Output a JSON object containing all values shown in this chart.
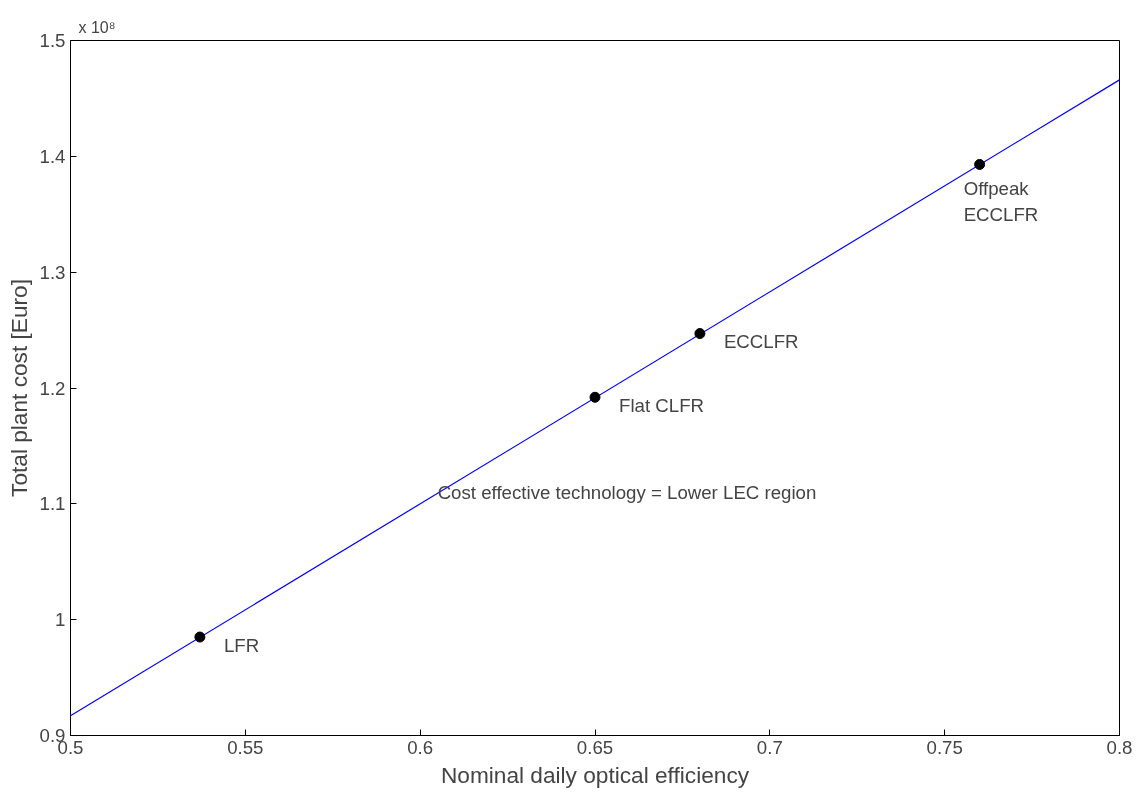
{
  "chart_data": {
    "type": "scatter",
    "xlabel": "Nominal daily optical efficiency",
    "ylabel": "Total plant cost [Euro]",
    "xlim": [
      0.5,
      0.8
    ],
    "xticks": [
      0.5,
      0.55,
      0.6,
      0.65,
      0.7,
      0.75,
      0.8
    ],
    "ylim": [
      0.9,
      1.5
    ],
    "yticks": [
      0.9,
      1,
      1.1,
      1.2,
      1.3,
      1.4,
      1.5
    ],
    "grid": false,
    "series": [
      {
        "type": "line",
        "color": "#0000ff",
        "x": [
          0.5,
          0.8
        ],
        "values": [
          0.917,
          1.466
        ],
        "marker": "none",
        "line_style": "solid"
      },
      {
        "color": "#000000",
        "x": [
          0.537,
          0.65,
          0.68,
          0.76
        ],
        "values": [
          0.985,
          1.192,
          1.247,
          1.393
        ],
        "marker": "circle"
      }
    ],
    "annotations": [
      {
        "text": "LFR",
        "x": 0.537,
        "y": 0.985
      },
      {
        "text": "Flat CLFR",
        "x": 0.65,
        "y": 1.192
      },
      {
        "text": "ECCLFR",
        "x": 0.68,
        "y": 1.247
      },
      {
        "text": "Offpeak\nECCLFR",
        "x": 0.76,
        "y": 1.393
      },
      "Cost effective technology = Lower LEC region",
      "x 10⁸"
    ]
  }
}
